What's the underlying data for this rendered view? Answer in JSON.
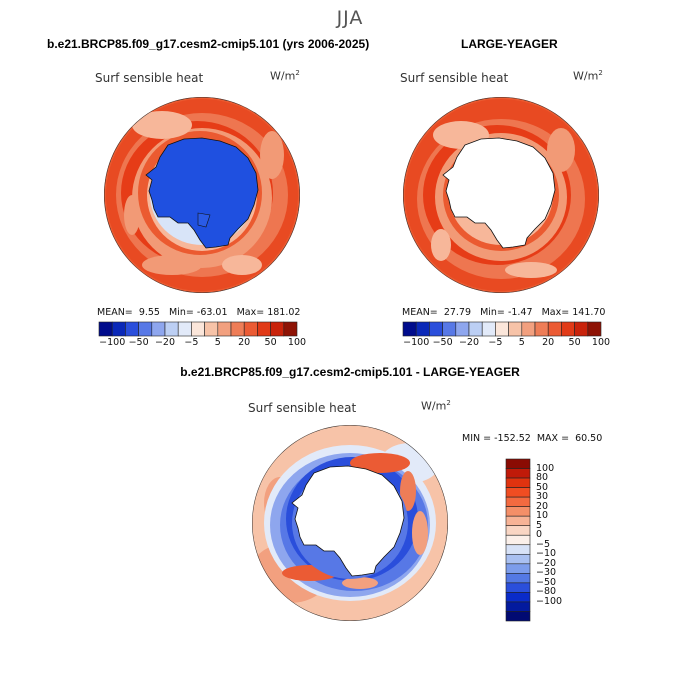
{
  "title": "JJA",
  "colors": {
    "p1m100": "#08088e",
    "p1m50": "#1026b8",
    "p1m20": "#2f4fd8",
    "p1m10": "#5a78e6",
    "p1m5": "#9ab2f0",
    "p1near": "#d8e4f8",
    "p1p1": "#fbe1d4",
    "p1p5": "#f7b79a",
    "p1p10": "#f29a76",
    "p1p20": "#ee7650",
    "p1p30": "#eb5a30",
    "p1p40": "#e63c17",
    "p1p50": "#d4280c",
    "p1p100": "#8c1204"
  },
  "chart_data": [
    {
      "type": "heatmap",
      "title": "b.e21.BRCP85.f09_g17.cesm2-cmip5.101 (yrs 2006-2025)",
      "variable": "Surf sensible heat",
      "units_base": "W/m",
      "units_exp": "2",
      "stats": {
        "mean_label": "MEAN=",
        "mean": "9.55",
        "min_label": "Min=",
        "min": "-63.01",
        "max_label": "Max=",
        "max": "181.02"
      },
      "colorbar": {
        "ticks": [
          "-100",
          "-50",
          "-20",
          "-5",
          "5",
          "20",
          "50",
          "100"
        ],
        "colors": [
          "#000c8c",
          "#0a28b8",
          "#2a4edb",
          "#5778e6",
          "#8ea6ee",
          "#bccff4",
          "#e2eaf9",
          "#fbe6da",
          "#f7c3a8",
          "#f2a07f",
          "#ee7d57",
          "#eb5b34",
          "#e13a17",
          "#c9230b",
          "#8e1305"
        ]
      }
    },
    {
      "type": "heatmap",
      "title": "LARGE-YEAGER",
      "variable": "Surf sensible heat",
      "units_base": "W/m",
      "units_exp": "2",
      "stats": {
        "mean_label": "MEAN=",
        "mean": "27.79",
        "min_label": "Min=",
        "min": "-1.47",
        "max_label": "Max=",
        "max": "141.70"
      },
      "colorbar": {
        "ticks": [
          "-100",
          "-50",
          "-20",
          "-5",
          "5",
          "20",
          "50",
          "100"
        ],
        "colors": [
          "#000c8c",
          "#0a28b8",
          "#2a4edb",
          "#5778e6",
          "#8ea6ee",
          "#bccff4",
          "#e2eaf9",
          "#fbe6da",
          "#f7c3a8",
          "#f2a07f",
          "#ee7d57",
          "#eb5b34",
          "#e13a17",
          "#c9230b",
          "#8e1305"
        ]
      }
    },
    {
      "type": "heatmap",
      "title": "b.e21.BRCP85.f09_g17.cesm2-cmip5.101 - LARGE-YEAGER",
      "variable": "Surf sensible heat",
      "units_base": "W/m",
      "units_exp": "2",
      "stats": {
        "min_label": "MIN =",
        "min": "-152.52",
        "max_label": "MAX =",
        "max": "60.50"
      },
      "colorbar": {
        "ticks": [
          "100",
          "80",
          "50",
          "30",
          "20",
          "10",
          "5",
          "0",
          "−5",
          "−10",
          "−20",
          "−30",
          "−50",
          "−80",
          "−100"
        ],
        "colors": [
          "#8a0b03",
          "#c01a09",
          "#e0330f",
          "#f04d22",
          "#f36a40",
          "#f48f68",
          "#f7b396",
          "#f9d6c4",
          "#fbf0ea",
          "#d7e2f7",
          "#a9c0f1",
          "#7d9deb",
          "#5479e4",
          "#2b4fdb",
          "#0a2bc9",
          "#031a9e",
          "#010a72"
        ]
      }
    }
  ]
}
